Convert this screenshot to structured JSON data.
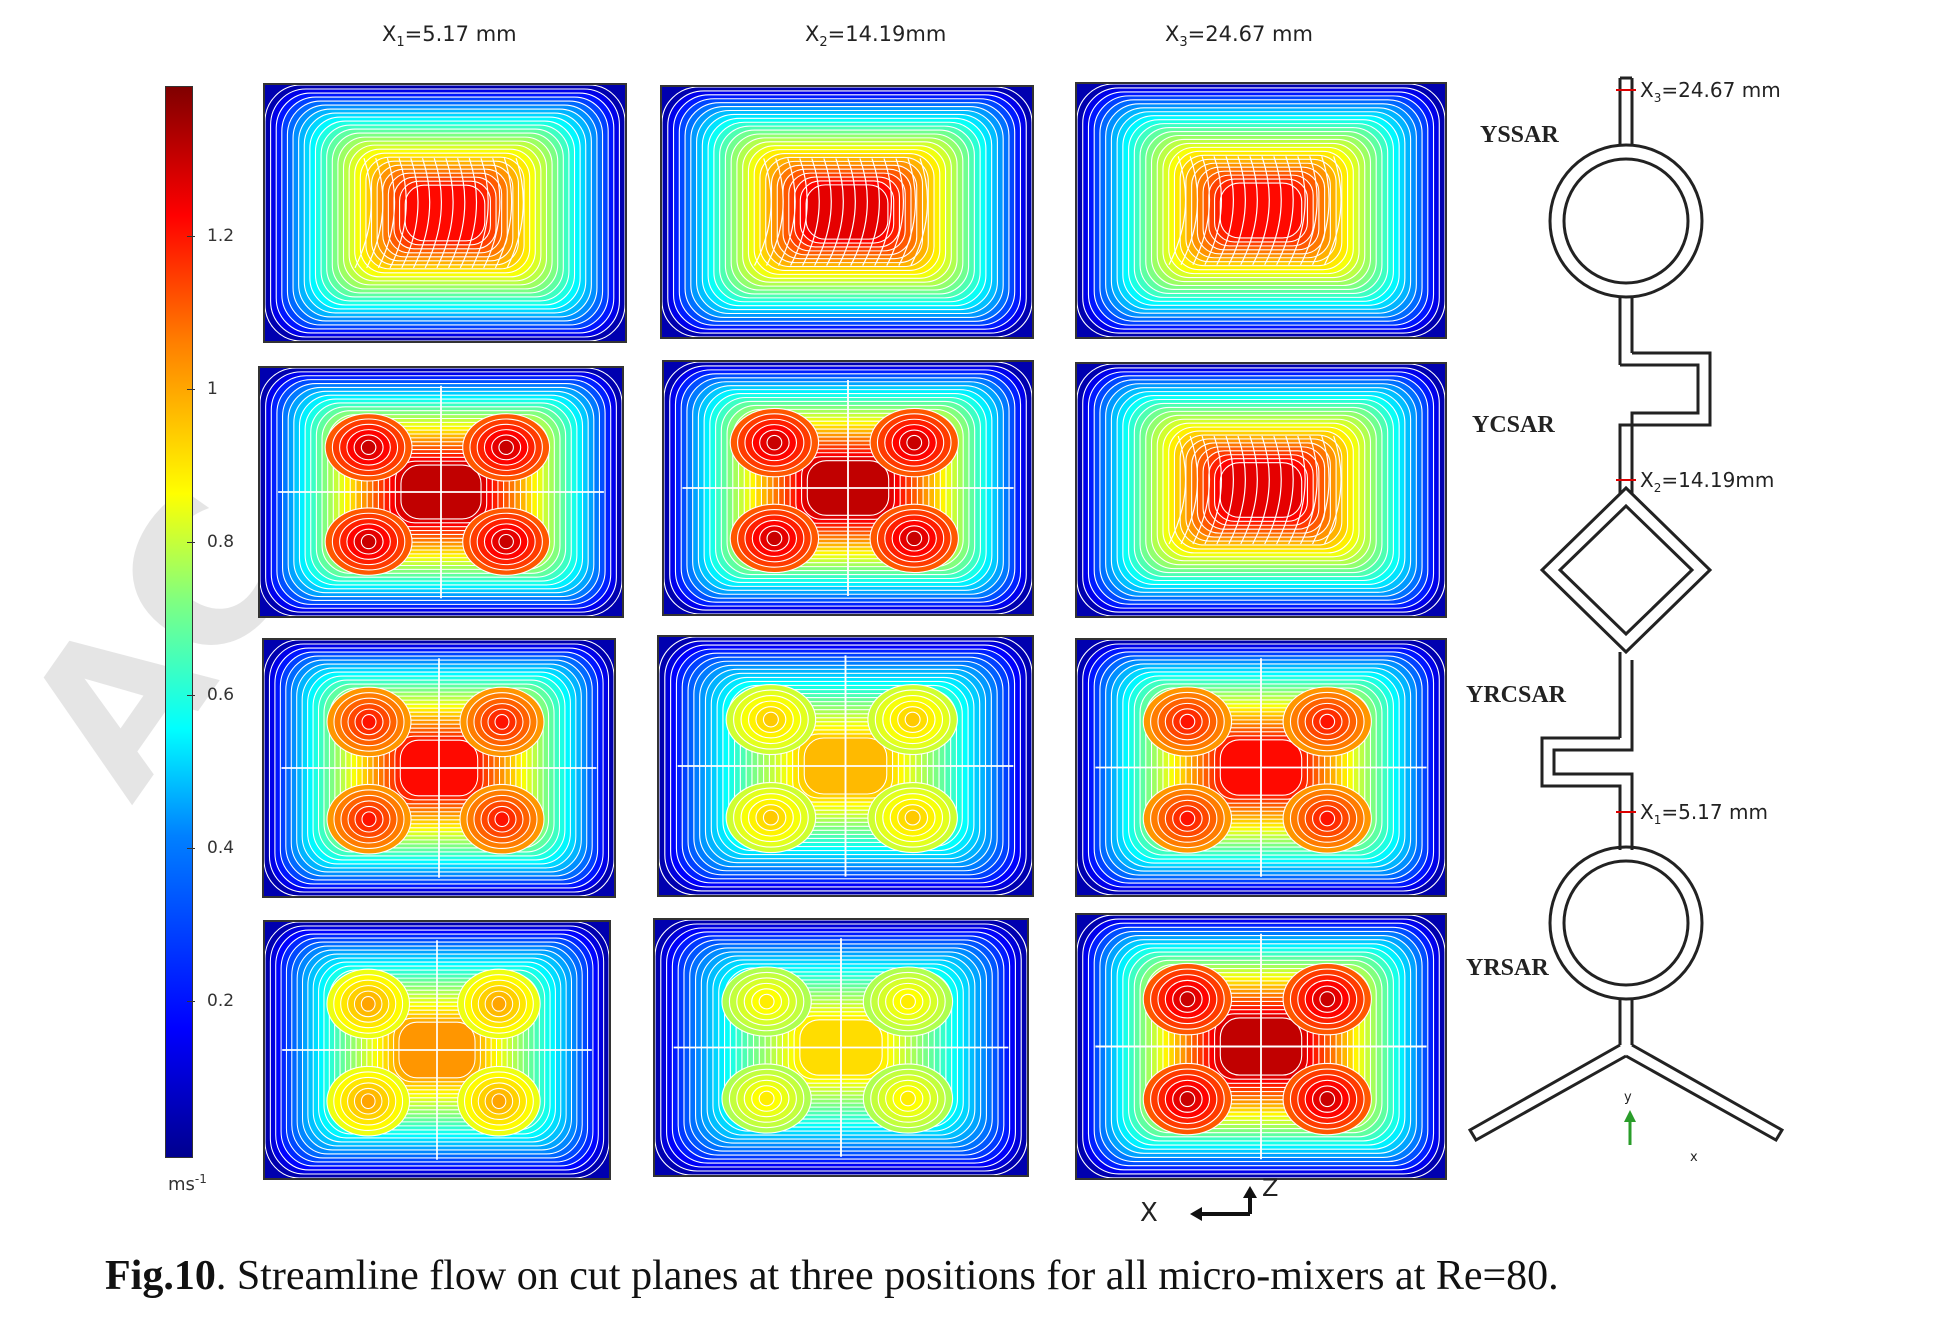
{
  "columns": [
    {
      "prefix": "X",
      "sub": "1",
      "rest": "=5.17 mm"
    },
    {
      "prefix": "X",
      "sub": "2",
      "rest": "=14.19mm"
    },
    {
      "prefix": "X",
      "sub": "3",
      "rest": "=24.67 mm"
    }
  ],
  "colorbar": {
    "ticks": [
      "1.2",
      "1",
      "0.8",
      "0.6",
      "0.4",
      "0.2"
    ],
    "tick_values": [
      1.2,
      1.0,
      0.8,
      0.6,
      0.4,
      0.2
    ],
    "range": [
      0,
      1.4
    ],
    "unit": "ms",
    "unit_exp": "-1",
    "colors": [
      "#00008f",
      "#0000ff",
      "#0080ff",
      "#00ffff",
      "#80ff80",
      "#ffff00",
      "#ff8000",
      "#ff0000",
      "#800000"
    ]
  },
  "mixers": [
    "YSSAR",
    "YCSAR",
    "YRCSAR",
    "YRSAR"
  ],
  "positions": [
    {
      "prefix": "X",
      "sub": "3",
      "rest": "=24.67 mm"
    },
    {
      "prefix": "X",
      "sub": "2",
      "rest": "=14.19mm"
    },
    {
      "prefix": "X",
      "sub": "1",
      "rest": "=5.17 mm"
    }
  ],
  "triad_labels": {
    "x": "x",
    "y": "y"
  },
  "view_axes": {
    "x": "X",
    "z": "Z"
  },
  "panels": [
    [
      {
        "peak": 1.2,
        "vortices": 0
      },
      {
        "peak": 1.25,
        "vortices": 0
      },
      {
        "peak": 1.2,
        "vortices": 0
      }
    ],
    [
      {
        "peak": 1.3,
        "vortices": 4
      },
      {
        "peak": 1.3,
        "vortices": 4
      },
      {
        "peak": 1.25,
        "vortices": 0
      }
    ],
    [
      {
        "peak": 1.2,
        "vortices": 4
      },
      {
        "peak": 0.95,
        "vortices": 4
      },
      {
        "peak": 1.2,
        "vortices": 4
      }
    ],
    [
      {
        "peak": 1.0,
        "vortices": 4
      },
      {
        "peak": 0.9,
        "vortices": 4
      },
      {
        "peak": 1.3,
        "vortices": 4
      }
    ]
  ],
  "caption": {
    "label": "Fig.10",
    "text": ". Streamline flow on cut planes at three positions for all micro-mixers at Re=80."
  },
  "watermark": "AC"
}
